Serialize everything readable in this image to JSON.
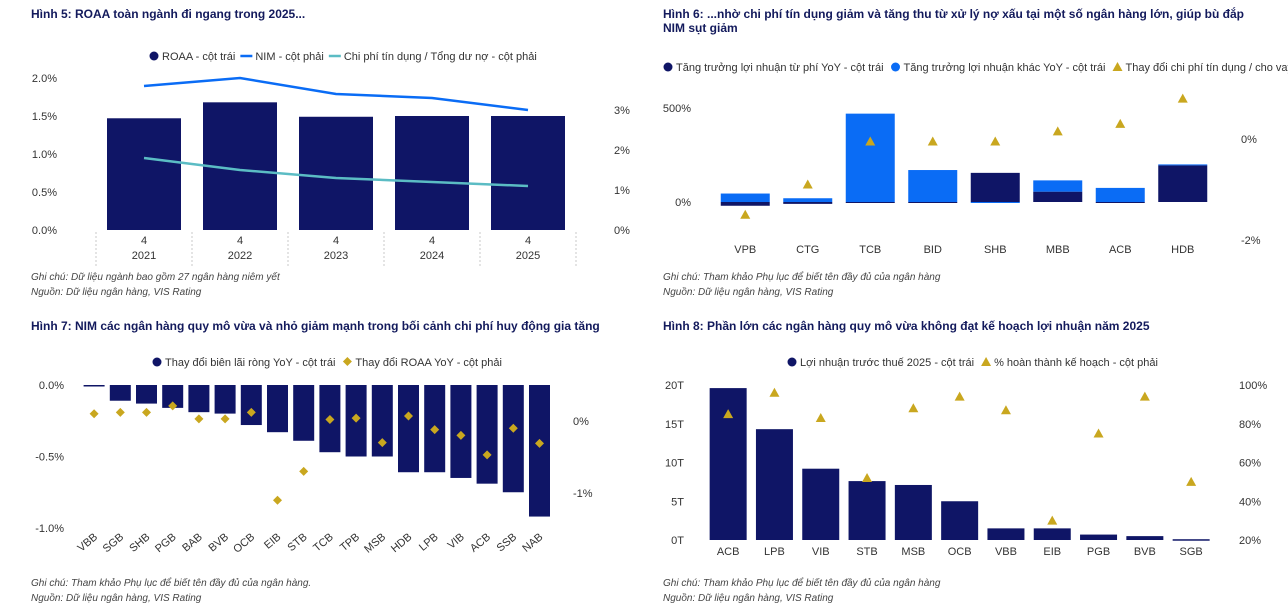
{
  "colors": {
    "navy": "#0f1566",
    "blue": "#0a6cf5",
    "teal": "#5bbcc4",
    "gold": "#c9a71f",
    "grid": "#c8c8c8"
  },
  "fig5": {
    "title": "Hình 5: ROAA toàn ngành đi ngang trong 2025...",
    "note": "Ghi chú: Dữ liệu ngành bao gồm 27 ngân hàng niêm yết",
    "source": "Nguồn: Dữ liệu ngân hàng, VIS Rating",
    "legend": [
      "ROAA - cột trái",
      "NIM - cột phải",
      "Chi phí tín dụng / Tổng dư nợ - cột phải"
    ]
  },
  "fig6": {
    "title": "Hình 6: ...nhờ chi phí tín dụng giảm và tăng thu từ xử lý nợ xấu tại một số ngân hàng lớn, giúp bù đắp NIM sụt giảm",
    "note": "Ghi chú: Tham khảo Phụ lục để biết tên đầy đủ của ngân hàng",
    "source": "Nguồn: Dữ liệu ngân hàng, VIS Rating",
    "legend": [
      "Tăng trưởng lợi nhuận từ phí YoY - cột trái",
      "Tăng trưởng lợi nhuận khác YoY - cột trái",
      "Thay đổi chi phí tín dụng / cho vay ..."
    ]
  },
  "fig7": {
    "title": "Hình 7: NIM các ngân hàng quy mô vừa và nhỏ giảm mạnh trong bối cảnh chi phí huy động gia tăng",
    "note": "Ghi chú: Tham khảo Phụ lục để biết tên đầy đủ của ngân hàng.",
    "source": "Nguồn: Dữ liệu ngân hàng, VIS Rating",
    "legend": [
      "Thay đổi biên lãi ròng YoY - cột trái",
      "Thay đổi ROAA YoY - cột phải"
    ]
  },
  "fig8": {
    "title": "Hình 8: Phần lớn các ngân hàng quy mô vừa không đạt kế hoạch lợi nhuận năm 2025",
    "note": "Ghi chú: Tham khảo Phụ lục để biết tên đầy đủ của ngân hàng",
    "source": "Nguồn: Dữ liệu ngân hàng, VIS Rating",
    "legend": [
      "Lợi nhuận trước thuế 2025 - cột trái",
      "% hoàn thành kế hoạch - cột phải"
    ]
  },
  "chart_data": [
    {
      "type": "bar",
      "title": "Hình 5: ROAA toàn ngành đi ngang trong 2025...",
      "categories": [
        [
          "4",
          "2021"
        ],
        [
          "4",
          "2022"
        ],
        [
          "4",
          "2023"
        ],
        [
          "4",
          "2024"
        ],
        [
          "4",
          "2025"
        ]
      ],
      "series": [
        {
          "name": "ROAA - cột trái",
          "kind": "bar",
          "axis": "left",
          "values": [
            1.47,
            1.68,
            1.49,
            1.5,
            1.5
          ]
        },
        {
          "name": "NIM - cột phải",
          "kind": "line",
          "axis": "right",
          "values": [
            3.6,
            3.8,
            3.4,
            3.3,
            3.0
          ]
        },
        {
          "name": "Chi phí tín dụng / Tổng dư nợ - cột phải",
          "kind": "line",
          "axis": "right",
          "values": [
            1.8,
            1.5,
            1.3,
            1.2,
            1.1
          ]
        }
      ],
      "left_ticks": [
        "0.0%",
        "0.5%",
        "1.0%",
        "1.5%",
        "2.0%"
      ],
      "right_ticks": [
        "0%",
        "1%",
        "2%",
        "3%"
      ],
      "ylim_left": [
        0,
        2.0
      ],
      "ylim_right": [
        0,
        3.8
      ]
    },
    {
      "type": "bar",
      "title": "Hình 6: ...nhờ chi phí tín dụng giảm và tăng thu từ xử lý nợ xấu tại một số ngân hàng lớn, giúp bù đắp NIM sụt giảm",
      "categories": [
        "VPB",
        "CTG",
        "TCB",
        "BID",
        "SHB",
        "MBB",
        "ACB",
        "HDB"
      ],
      "series": [
        {
          "name": "Tăng trưởng lợi nhuận từ phí YoY - cột trái",
          "kind": "stacked-bar",
          "axis": "left",
          "values": [
            -20,
            -10,
            -5,
            0,
            155,
            55,
            -5,
            195
          ]
        },
        {
          "name": "Tăng trưởng lợi nhuận khác YoY - cột trái",
          "kind": "stacked-bar",
          "axis": "left",
          "values": [
            45,
            20,
            470,
            170,
            -5,
            60,
            75,
            5
          ]
        },
        {
          "name": "Thay đổi chi phí tín dụng / cho vay ...",
          "kind": "marker",
          "axis": "right",
          "values": [
            -1.5,
            -0.9,
            -0.05,
            -0.05,
            -0.05,
            0.15,
            0.3,
            0.8
          ]
        }
      ],
      "left_ticks": [
        "0%",
        "500%"
      ],
      "right_ticks": [
        "-2%",
        "0%"
      ],
      "ylim_left": [
        -195,
        500
      ],
      "ylim_right": [
        -2.5,
        1.0
      ]
    },
    {
      "type": "bar",
      "title": "Hình 7: NIM các ngân hàng quy mô vừa và nhỏ giảm mạnh trong bối cảnh chi phí huy động gia tăng",
      "categories": [
        "VBB",
        "SGB",
        "SHB",
        "PGB",
        "BAB",
        "BVB",
        "OCB",
        "EIB",
        "STB",
        "TCB",
        "TPB",
        "MSB",
        "HDB",
        "LPB",
        "VIB",
        "ACB",
        "SSB",
        "NAB"
      ],
      "series": [
        {
          "name": "Thay đổi biên lãi ròng YoY - cột trái",
          "kind": "bar",
          "axis": "left",
          "values": [
            -0.01,
            -0.11,
            -0.13,
            -0.16,
            -0.19,
            -0.2,
            -0.28,
            -0.33,
            -0.39,
            -0.47,
            -0.5,
            -0.5,
            -0.61,
            -0.61,
            -0.65,
            -0.69,
            -0.75,
            -0.92
          ]
        },
        {
          "name": "Thay đổi ROAA YoY - cột phải",
          "kind": "marker",
          "axis": "right",
          "values": [
            0.1,
            0.12,
            0.12,
            0.21,
            0.03,
            0.03,
            0.12,
            -1.1,
            -0.7,
            0.02,
            0.04,
            -0.3,
            0.07,
            -0.12,
            -0.2,
            -0.47,
            -0.1,
            -0.31
          ]
        }
      ],
      "left_ticks": [
        "-1.0%",
        "-0.5%",
        "0.0%"
      ],
      "right_ticks": [
        "-1%",
        "0%"
      ],
      "ylim_left": [
        -1.0,
        0.0
      ],
      "ylim_right": [
        -1.5,
        0.5
      ]
    },
    {
      "type": "bar",
      "title": "Hình 8: Phần lớn các ngân hàng quy mô vừa không đạt kế hoạch lợi nhuận năm 2025",
      "categories": [
        "ACB",
        "LPB",
        "VIB",
        "STB",
        "MSB",
        "OCB",
        "VBB",
        "EIB",
        "PGB",
        "BVB",
        "SGB"
      ],
      "series": [
        {
          "name": "Lợi nhuận trước thuế 2025 - cột trái",
          "kind": "bar",
          "axis": "left",
          "values": [
            19.6,
            14.3,
            9.2,
            7.6,
            7.1,
            5.0,
            1.5,
            1.5,
            0.7,
            0.5,
            0.1
          ]
        },
        {
          "name": "% hoàn thành kế hoạch - cột phải",
          "kind": "marker",
          "axis": "right",
          "values": [
            85,
            96,
            83,
            52,
            88,
            94,
            87,
            30,
            75,
            94,
            50
          ]
        }
      ],
      "left_ticks": [
        "0T",
        "5T",
        "10T",
        "15T",
        "20T"
      ],
      "right_ticks": [
        "20%",
        "40%",
        "60%",
        "80%",
        "100%"
      ],
      "ylim_left": [
        0,
        20
      ],
      "ylim_right": [
        20,
        100
      ]
    }
  ]
}
